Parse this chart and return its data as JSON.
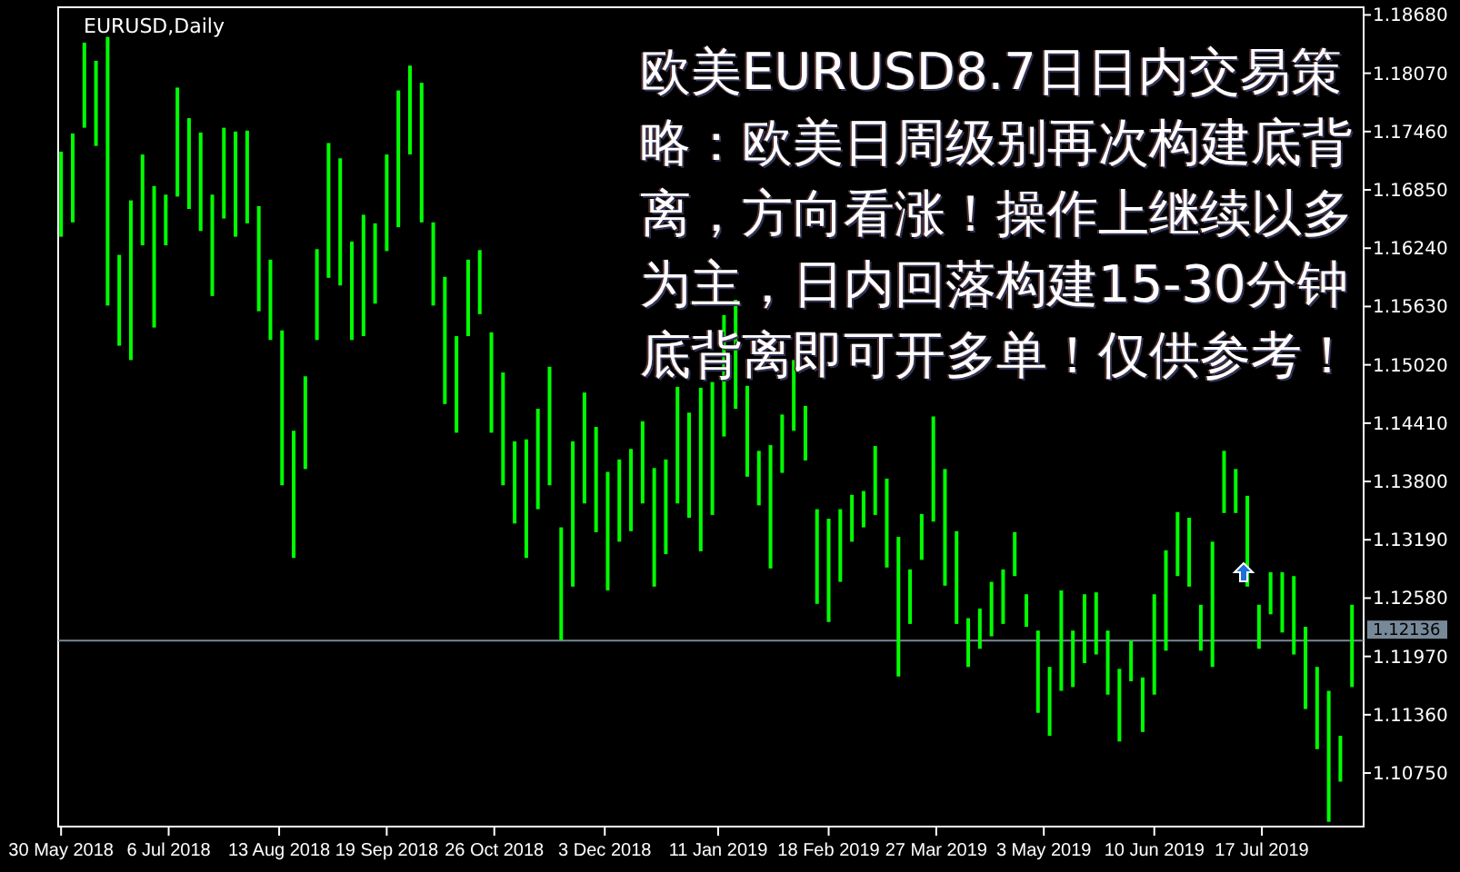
{
  "chart_data": {
    "type": "bar",
    "title": "EURUSD,Daily",
    "annotations": [
      "欧美EURUSD8.7日日内交易策略：欧美日周级别再次构建底背离，方向看涨！操作上继续以多为主，日内回落构建15-30分钟底背离即可开多单！仅供参考！"
    ],
    "color": "#00ff00",
    "x": [
      "2018-05-30",
      "2018-06-03",
      "2018-06-07",
      "2018-06-11",
      "2018-06-15",
      "2018-06-19",
      "2018-06-23",
      "2018-06-27",
      "2018-07-01",
      "2018-07-05",
      "2018-07-09",
      "2018-07-13",
      "2018-07-17",
      "2018-07-21",
      "2018-07-25",
      "2018-07-29",
      "2018-08-02",
      "2018-08-06",
      "2018-08-10",
      "2018-08-14",
      "2018-08-18",
      "2018-08-22",
      "2018-08-26",
      "2018-08-30",
      "2018-09-03",
      "2018-09-07",
      "2018-09-11",
      "2018-09-15",
      "2018-09-19",
      "2018-09-23",
      "2018-09-27",
      "2018-10-01",
      "2018-10-05",
      "2018-10-09",
      "2018-10-13",
      "2018-10-17",
      "2018-10-21",
      "2018-10-25",
      "2018-10-29",
      "2018-11-02",
      "2018-11-06",
      "2018-11-10",
      "2018-11-14",
      "2018-11-18",
      "2018-11-22",
      "2018-11-26",
      "2018-11-30",
      "2018-12-04",
      "2018-12-08",
      "2018-12-12",
      "2018-12-16",
      "2018-12-20",
      "2018-12-24",
      "2018-12-28",
      "2019-01-01",
      "2019-01-05",
      "2019-01-09",
      "2019-01-13",
      "2019-01-17",
      "2019-01-21",
      "2019-01-25",
      "2019-01-29",
      "2019-02-02",
      "2019-02-06",
      "2019-02-10",
      "2019-02-14",
      "2019-02-18",
      "2019-02-22",
      "2019-02-26",
      "2019-03-02",
      "2019-03-06",
      "2019-03-10",
      "2019-03-14",
      "2019-03-18",
      "2019-03-22",
      "2019-03-26",
      "2019-03-30",
      "2019-04-03",
      "2019-04-07",
      "2019-04-11",
      "2019-04-15",
      "2019-04-19",
      "2019-04-23",
      "2019-04-27",
      "2019-05-01",
      "2019-05-05",
      "2019-05-09",
      "2019-05-13",
      "2019-05-17",
      "2019-05-21",
      "2019-05-25",
      "2019-05-29",
      "2019-06-02",
      "2019-06-06",
      "2019-06-10",
      "2019-06-14",
      "2019-06-18",
      "2019-06-22",
      "2019-06-26",
      "2019-06-30",
      "2019-07-04",
      "2019-07-08",
      "2019-07-12",
      "2019-07-16",
      "2019-07-20",
      "2019-07-24",
      "2019-07-28",
      "2019-08-01",
      "2019-08-05",
      "2019-08-09",
      "2019-08-13",
      "2019-08-17"
    ],
    "base": [
      1.1636,
      1.1651,
      1.175,
      1.1731,
      1.1564,
      1.1522,
      1.1507,
      1.1627,
      1.1541,
      1.1627,
      1.1678,
      1.1665,
      1.1642,
      1.1574,
      1.1655,
      1.1636,
      1.165,
      1.1558,
      1.1528,
      1.1376,
      1.13,
      1.1393,
      1.1528,
      1.1593,
      1.1585,
      1.1528,
      1.1532,
      1.1566,
      1.1621,
      1.1646,
      1.1722,
      1.1651,
      1.1564,
      1.1461,
      1.1431,
      1.1532,
      1.1555,
      1.1431,
      1.1376,
      1.1336,
      1.13,
      1.1351,
      1.1376,
      1.1214,
      1.127,
      1.1357,
      1.1327,
      1.1266,
      1.1317,
      1.1328,
      1.1357,
      1.127,
      1.1304,
      1.1357,
      1.1342,
      1.1307,
      1.1345,
      1.1427,
      1.1456,
      1.1385,
      1.1355,
      1.1289,
      1.1389,
      1.1433,
      1.1402,
      1.1252,
      1.1233,
      1.1275,
      1.1317,
      1.1332,
      1.1345,
      1.129,
      1.1176,
      1.1231,
      1.1298,
      1.1338,
      1.1271,
      1.1231,
      1.1186,
      1.1205,
      1.1218,
      1.1231,
      1.1281,
      1.1228,
      1.1138,
      1.1114,
      1.1161,
      1.1165,
      1.119,
      1.1199,
      1.1157,
      1.1108,
      1.1171,
      1.1118,
      1.1157,
      1.1203,
      1.1281,
      1.127,
      1.1203,
      1.1186,
      1.1347,
      1.1347,
      1.127,
      1.1205,
      1.1241,
      1.1222,
      1.1199,
      1.1142,
      1.11,
      1.1024,
      1.1066,
      1.1165
    ],
    "values": [
      0.0089,
      0.0093,
      0.0089,
      0.0089,
      0.0281,
      0.0095,
      0.0167,
      0.0095,
      0.0148,
      0.0053,
      0.0114,
      0.0095,
      0.0103,
      0.0106,
      0.0095,
      0.011,
      0.0097,
      0.011,
      0.0084,
      0.0162,
      0.0133,
      0.0097,
      0.0095,
      0.0141,
      0.0133,
      0.0103,
      0.0127,
      0.0084,
      0.0101,
      0.0143,
      0.0093,
      0.0146,
      0.0087,
      0.0133,
      0.0101,
      0.008,
      0.0067,
      0.0105,
      0.0118,
      0.0086,
      0.0124,
      0.0105,
      0.0124,
      0.0118,
      0.0152,
      0.0116,
      0.011,
      0.0124,
      0.0086,
      0.0086,
      0.0086,
      0.0124,
      0.0099,
      0.0122,
      0.011,
      0.0171,
      0.0139,
      0.0127,
      0.0114,
      0.0095,
      0.0057,
      0.0129,
      0.0061,
      0.0074,
      0.0057,
      0.0099,
      0.0108,
      0.0076,
      0.0049,
      0.0038,
      0.0072,
      0.0093,
      0.0146,
      0.0057,
      0.0048,
      0.011,
      0.0122,
      0.0097,
      0.0051,
      0.0042,
      0.0057,
      0.0057,
      0.0046,
      0.0034,
      0.0086,
      0.0072,
      0.0105,
      0.0059,
      0.0072,
      0.0065,
      0.0067,
      0.0076,
      0.0042,
      0.0057,
      0.0105,
      0.0105,
      0.0067,
      0.0072,
      0.0048,
      0.0131,
      0.0065,
      0.0046,
      0.0095,
      0.0046,
      0.0044,
      0.0063,
      0.0082,
      0.0086,
      0.0086,
      0.0137,
      0.0048,
      0.0086
    ],
    "xlim": [
      "2018-05-29",
      "2019-08-21"
    ],
    "xticks": [
      {
        "value": "2018-05-30",
        "label": "30 May 2018"
      },
      {
        "value": "2018-07-06",
        "label": "6 Jul 2018"
      },
      {
        "value": "2018-08-13",
        "label": "13 Aug 2018"
      },
      {
        "value": "2018-09-19",
        "label": "19 Sep 2018"
      },
      {
        "value": "2018-10-26",
        "label": "26 Oct 2018"
      },
      {
        "value": "2018-12-03",
        "label": "3 Dec 2018"
      },
      {
        "value": "2019-01-11",
        "label": "11 Jan 2019"
      },
      {
        "value": "2019-02-18",
        "label": "18 Feb 2019"
      },
      {
        "value": "2019-03-27",
        "label": "27 Mar 2019"
      },
      {
        "value": "2019-05-03",
        "label": "3 May 2019"
      },
      {
        "value": "2019-06-10",
        "label": "10 Jun 2019"
      },
      {
        "value": "2019-07-17",
        "label": "17 Jul 2019"
      }
    ],
    "ylim": [
      1.1019,
      1.1876
    ],
    "yticks": [
      {
        "value": 1.1868,
        "label": "1.18680"
      },
      {
        "value": 1.1807,
        "label": "1.18070"
      },
      {
        "value": 1.1746,
        "label": "1.17460"
      },
      {
        "value": 1.1685,
        "label": "1.16850"
      },
      {
        "value": 1.1624,
        "label": "1.16240"
      },
      {
        "value": 1.1563,
        "label": "1.15630"
      },
      {
        "value": 1.1502,
        "label": "1.15020"
      },
      {
        "value": 1.1441,
        "label": "1.14410"
      },
      {
        "value": 1.138,
        "label": "1.13800"
      },
      {
        "value": 1.1319,
        "label": "1.13190"
      },
      {
        "value": 1.1258,
        "label": "1.12580"
      },
      {
        "value": 1.1197,
        "label": "1.11970"
      },
      {
        "value": 1.1136,
        "label": "1.11360"
      },
      {
        "value": 1.1075,
        "label": "1.10750"
      }
    ],
    "ref_lines": [
      {
        "axis": "y",
        "value": 1.12136,
        "label": "1.12136",
        "color": "#778899"
      }
    ]
  }
}
